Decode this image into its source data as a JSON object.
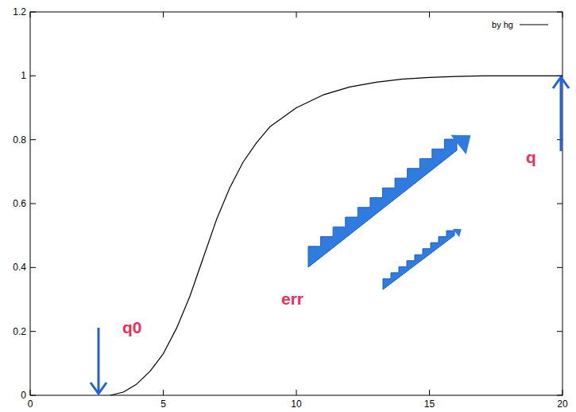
{
  "chart_data": {
    "type": "line",
    "x": [
      3,
      3.5,
      4,
      4.5,
      5,
      5.5,
      6,
      6.5,
      7,
      7.5,
      8,
      8.5,
      9,
      10,
      11,
      12,
      13,
      14,
      15,
      16,
      17,
      18,
      19,
      20
    ],
    "series": [
      {
        "name": "by hg",
        "color": "#000000",
        "values": [
          0,
          0.01,
          0.035,
          0.075,
          0.13,
          0.21,
          0.31,
          0.43,
          0.55,
          0.65,
          0.73,
          0.79,
          0.84,
          0.9,
          0.94,
          0.965,
          0.98,
          0.99,
          0.995,
          0.998,
          1,
          1,
          1,
          1
        ]
      }
    ],
    "xlim": [
      0,
      20
    ],
    "xticks": [
      0,
      5,
      10,
      15,
      20
    ],
    "ylim": [
      0,
      1.2
    ],
    "yticks": [
      0,
      0.2,
      0.4,
      0.6,
      0.8,
      1,
      1.2
    ],
    "annotations": [
      "q0",
      "err",
      "q"
    ],
    "grid": false,
    "legend": "top-right"
  }
}
